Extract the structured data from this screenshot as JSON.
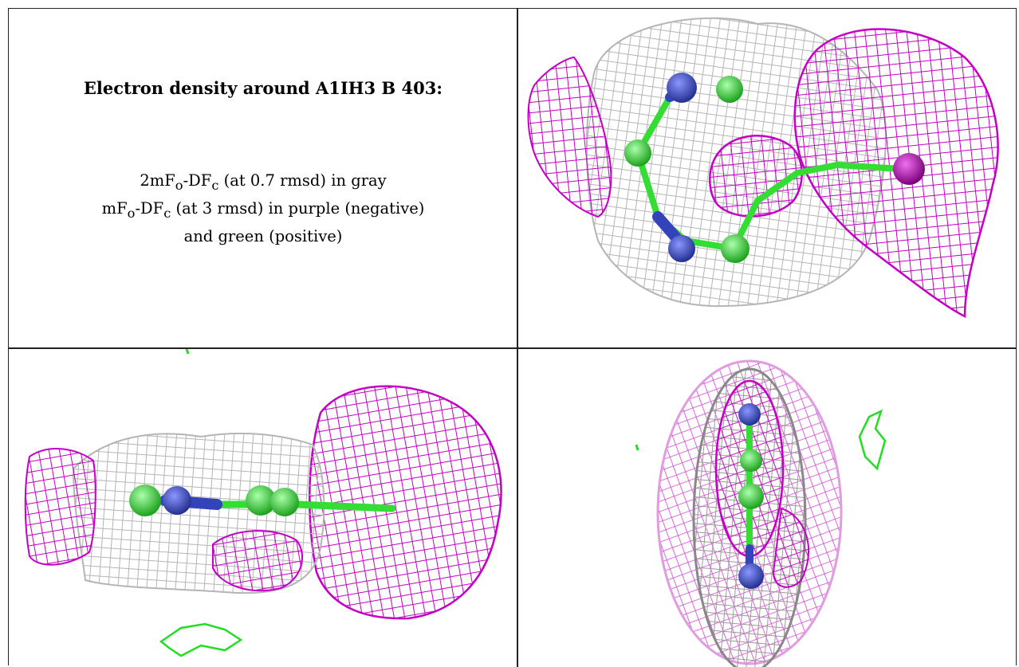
{
  "heading": "Electron density around A1IH3 B 403:",
  "legend": {
    "line1": {
      "prefix": "2mF",
      "sub1": "o",
      "mid": "-DF",
      "sub2": "c",
      "rest": " (at 0.7 rmsd) in gray"
    },
    "line2": {
      "prefix": "mF",
      "sub1": "o",
      "mid": "-DF",
      "sub2": "c",
      "rest": " (at 3 rmsd) in purple (negative)"
    },
    "line3": "and green (positive)"
  },
  "colors": {
    "gray_mesh": "#b5b5b5",
    "purple_mesh": "#c400c4",
    "green_mesh": "#22dd22",
    "blue_atom": "#3344bb",
    "green_atom": "#33dd33"
  },
  "panels": [
    {
      "name": "view-top-right"
    },
    {
      "name": "view-bottom-left"
    },
    {
      "name": "view-bottom-right"
    }
  ]
}
